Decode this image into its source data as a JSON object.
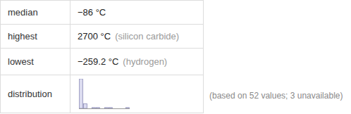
{
  "table": {
    "rows": [
      [
        "median",
        "−86 °C"
      ],
      [
        "highest",
        "2700 °C",
        "(silicon carbide)"
      ],
      [
        "lowest",
        "−259.2 °C",
        "(hydrogen)"
      ],
      [
        "distribution"
      ]
    ]
  },
  "chart_data": {
    "type": "histogram",
    "bins": [
      -300,
      -50,
      200,
      450,
      700,
      950,
      1200,
      1450,
      1700,
      1950,
      2200,
      2450,
      2700
    ],
    "counts": [
      38,
      6,
      0,
      1,
      1,
      0,
      1,
      1,
      0,
      0,
      0,
      1
    ],
    "color": "#dcdcf0",
    "xlim": [
      -300,
      2700
    ],
    "ylim": [
      0,
      38
    ],
    "tick_labels": false
  },
  "note": "(based on 52 values; 3 unavailable)"
}
